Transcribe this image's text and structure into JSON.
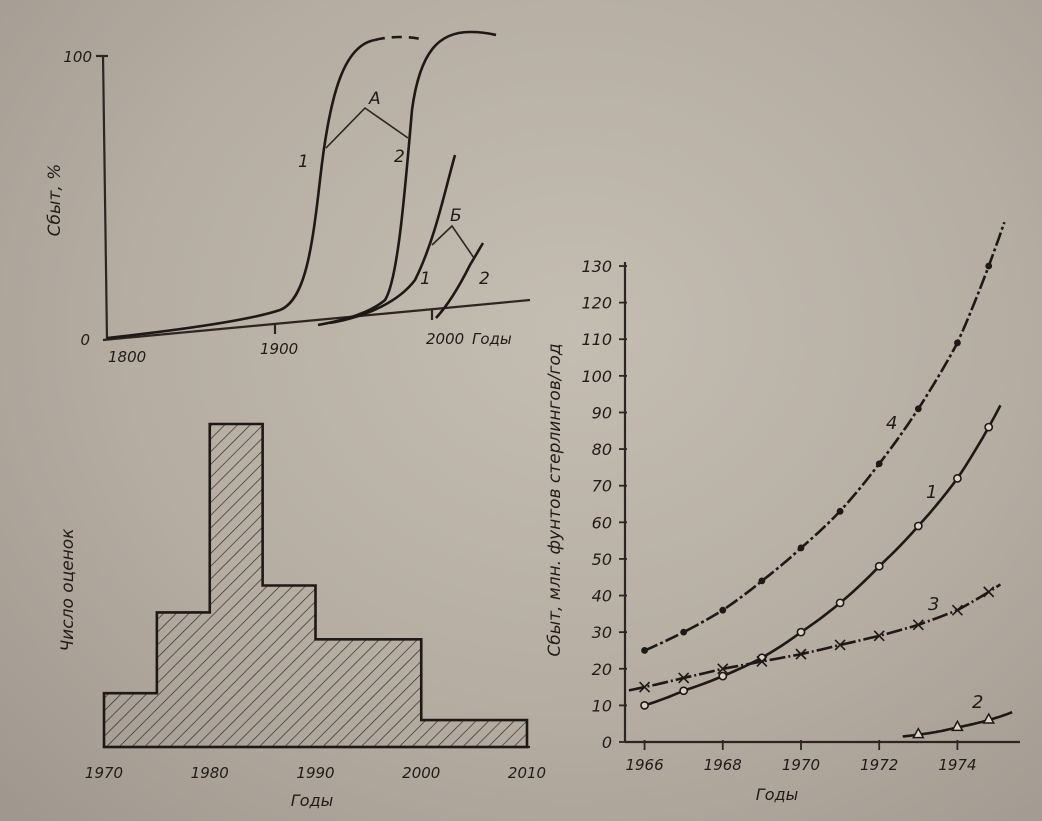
{
  "chart_data": [
    {
      "type": "line",
      "ylabel": "Сбыт, %",
      "xlabel": "Годы",
      "x_ticks": [
        "1800",
        "1900",
        "2000"
      ],
      "y_ticks": [
        "0",
        "100"
      ],
      "annotations": [
        "А",
        "Б",
        "1",
        "2",
        "1",
        "2"
      ],
      "xlim": [
        1800,
        2050
      ],
      "ylim": [
        0,
        100
      ],
      "series": [
        {
          "name": "1",
          "group": "А",
          "x": [
            1800,
            1850,
            1880,
            1900,
            1910,
            1920,
            1930,
            1945,
            1960
          ],
          "y": [
            0,
            2,
            5,
            8,
            12,
            35,
            80,
            97,
            100
          ]
        },
        {
          "name": "2",
          "group": "А",
          "x": [
            1920,
            1940,
            1960,
            1970,
            1975,
            1980,
            1990,
            2010
          ],
          "y": [
            0,
            2,
            6,
            14,
            40,
            80,
            97,
            100
          ]
        },
        {
          "name": "1",
          "group": "Б",
          "x": [
            1960,
            1980,
            1995,
            2005,
            2015
          ],
          "y": [
            0,
            3,
            15,
            38,
            66
          ]
        },
        {
          "name": "2",
          "group": "Б",
          "x": [
            1995,
            2003,
            2010,
            2018
          ],
          "y": [
            0,
            8,
            20,
            34
          ]
        }
      ]
    },
    {
      "type": "bar",
      "ylabel": "Число оценок",
      "xlabel": "Годы",
      "x_ticks": [
        "1970",
        "1980",
        "1990",
        "2000",
        "2010"
      ],
      "bins": [
        {
          "from": 1970,
          "to": 1975,
          "value": 2
        },
        {
          "from": 1975,
          "to": 1980,
          "value": 5
        },
        {
          "from": 1980,
          "to": 1985,
          "value": 12
        },
        {
          "from": 1985,
          "to": 1990,
          "value": 6
        },
        {
          "from": 1990,
          "to": 2000,
          "value": 4
        },
        {
          "from": 2000,
          "to": 2010,
          "value": 1
        }
      ]
    },
    {
      "type": "line",
      "ylabel": "Сбыт, млн. фунтов стерлингов/год",
      "xlabel": "Годы",
      "xlim": [
        1965.5,
        1975.6
      ],
      "ylim": [
        0,
        130
      ],
      "x_ticks": [
        "1966",
        "1968",
        "1970",
        "1972",
        "1974"
      ],
      "y_ticks": [
        "0",
        "10",
        "20",
        "30",
        "40",
        "50",
        "60",
        "70",
        "80",
        "90",
        "100",
        "110",
        "120",
        "130"
      ],
      "series": [
        {
          "name": "1",
          "x": [
            1966,
            1967,
            1968,
            1969,
            1970,
            1971,
            1972,
            1973,
            1974,
            1974.8
          ],
          "y": [
            10,
            14,
            18,
            23,
            30,
            38,
            48,
            59,
            72,
            86
          ]
        },
        {
          "name": "2",
          "x": [
            1973,
            1974,
            1974.8
          ],
          "y": [
            2,
            4,
            6
          ]
        },
        {
          "name": "3",
          "x": [
            1966,
            1967,
            1968,
            1969,
            1970,
            1971,
            1972,
            1973,
            1974,
            1974.8
          ],
          "y": [
            15,
            17.5,
            20,
            22,
            24,
            26.5,
            29,
            32,
            36,
            41
          ]
        },
        {
          "name": "4",
          "x": [
            1966,
            1967,
            1968,
            1969,
            1970,
            1971,
            1972,
            1973,
            1974,
            1974.8
          ],
          "y": [
            25,
            30,
            36,
            44,
            53,
            63,
            76,
            91,
            109,
            130
          ]
        }
      ]
    }
  ]
}
